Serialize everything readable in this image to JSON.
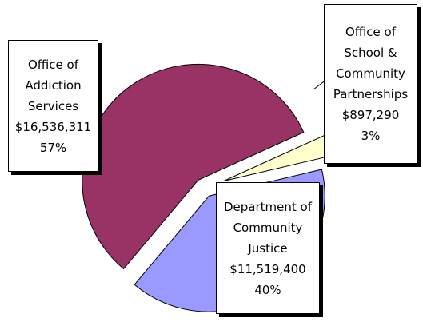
{
  "chart_data": {
    "type": "pie",
    "categories": [
      "Office of Addiction Services",
      "Office of School & Community Partnerships",
      "Department of Community Justice"
    ],
    "values": [
      16536311,
      897290,
      11519400
    ],
    "value_labels": [
      "$16,536,311",
      "$897,290",
      "$11,519,400"
    ],
    "percent_labels": [
      "57%",
      "3%",
      "40%"
    ],
    "colors": [
      "#993366",
      "#ffffcc",
      "#9999ff"
    ]
  }
}
